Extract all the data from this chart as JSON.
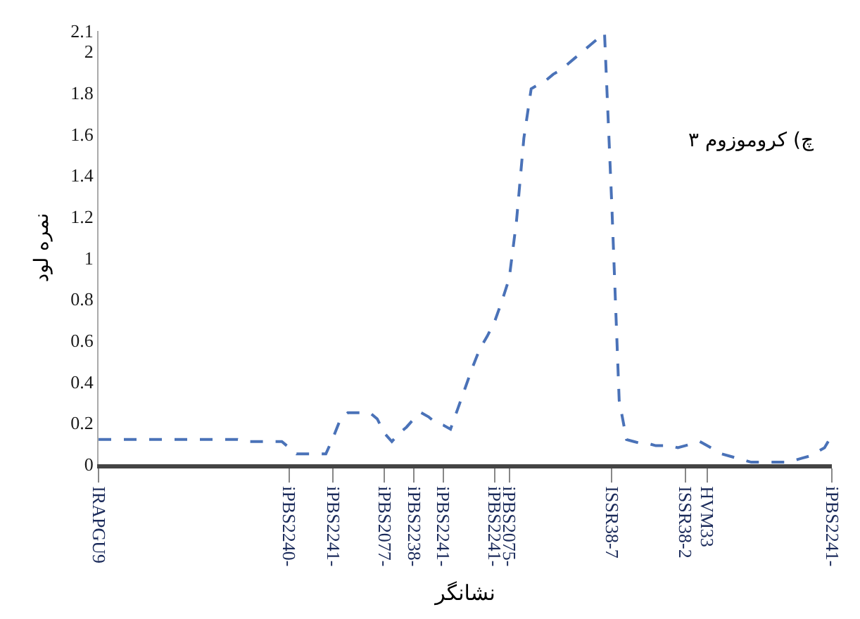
{
  "chart_data": {
    "type": "line",
    "xlabel": "نشانگر",
    "ylabel": "نمره لود",
    "annotations": [
      "چ) کروموزوم ۳"
    ],
    "categories": [
      "IRAPGU9",
      null,
      null,
      null,
      null,
      null,
      null,
      null,
      null,
      null,
      null,
      null,
      null,
      null,
      null,
      null,
      null,
      null,
      null,
      null,
      null,
      null,
      null,
      null,
      null,
      null,
      "iPBS2240-",
      null,
      null,
      null,
      null,
      null,
      "iPBS2241-",
      null,
      null,
      null,
      null,
      null,
      null,
      "iPBS2077-",
      null,
      null,
      null,
      "iPBS2238-",
      null,
      null,
      null,
      "iPBS2241-",
      null,
      null,
      null,
      null,
      null,
      null,
      "iPBS2241-",
      null,
      "iPBS2075-",
      null,
      null,
      null,
      null,
      null,
      null,
      null,
      null,
      null,
      null,
      null,
      null,
      null,
      "ISSR38-7",
      null,
      null,
      null,
      null,
      null,
      null,
      null,
      null,
      null,
      "ISSR38-2",
      null,
      null,
      "HVM33",
      null,
      null,
      null,
      null,
      null,
      null,
      null,
      null,
      null,
      null,
      null,
      null,
      null,
      null,
      null,
      null,
      "iPBS2241-"
    ],
    "series": [
      {
        "color": "#4a72b8",
        "values": [
          0.12,
          0.12,
          0.12,
          0.12,
          0.12,
          0.12,
          0.12,
          0.12,
          0.12,
          0.12,
          0.12,
          0.12,
          0.12,
          0.12,
          0.12,
          0.12,
          0.12,
          0.12,
          0.12,
          0.12,
          0.11,
          0.11,
          0.11,
          0.11,
          0.11,
          0.11,
          0.08,
          0.05,
          0.05,
          0.05,
          0.05,
          0.05,
          0.13,
          0.22,
          0.25,
          0.25,
          0.25,
          0.25,
          0.22,
          0.15,
          0.11,
          0.15,
          0.18,
          0.22,
          0.25,
          0.23,
          0.2,
          0.19,
          0.17,
          0.27,
          0.37,
          0.47,
          0.56,
          0.62,
          0.69,
          0.79,
          0.9,
          1.18,
          1.58,
          1.82,
          1.84,
          1.86,
          1.89,
          1.91,
          1.94,
          1.97,
          2.0,
          2.03,
          2.06,
          2.09,
          1.25,
          0.31,
          0.12,
          0.11,
          0.1,
          0.1,
          0.09,
          0.09,
          0.09,
          0.08,
          0.09,
          0.1,
          0.11,
          0.09,
          0.07,
          0.05,
          0.04,
          0.03,
          0.02,
          0.01,
          0.01,
          0.01,
          0.01,
          0.01,
          0.01,
          0.02,
          0.03,
          0.04,
          0.06,
          0.08,
          0.14
        ]
      }
    ],
    "ylim": [
      0,
      2.1
    ],
    "yticks": [
      0,
      0.2,
      0.4,
      0.6,
      0.8,
      1,
      1.2,
      1.4,
      1.6,
      1.8,
      2,
      2.1
    ],
    "marker": "none",
    "line_style": "dashed"
  }
}
